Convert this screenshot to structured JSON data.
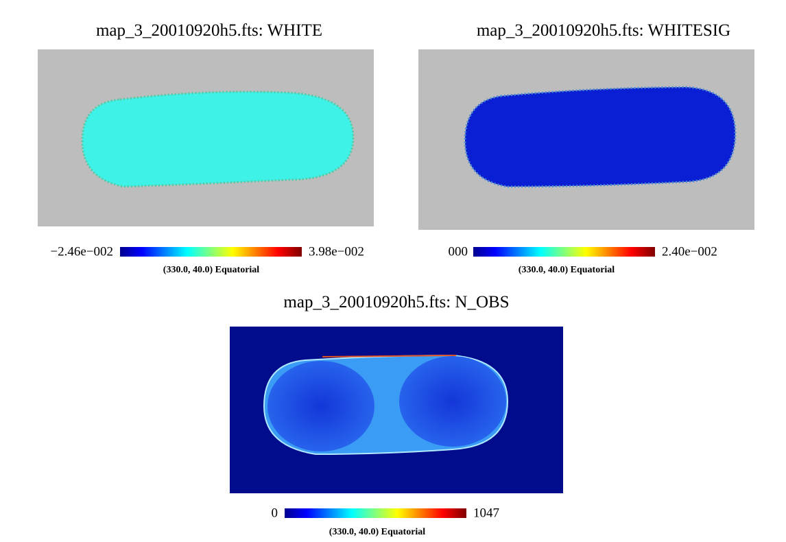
{
  "panels": [
    {
      "title": "map_3_20010920h5.fts: WHITE",
      "min_label": "−2.46e−002",
      "max_label": "3.98e−002",
      "caption": "(330.0, 40.0) Equatorial"
    },
    {
      "title": "map_3_20010920h5.fts: WHITESIG",
      "min_label": "000",
      "max_label": "2.40e−002",
      "caption": "(330.0, 40.0) Equatorial"
    },
    {
      "title": "map_3_20010920h5.fts: N_OBS",
      "min_label": "0",
      "max_label": "1047",
      "caption": "(330.0, 40.0) Equatorial"
    }
  ]
}
